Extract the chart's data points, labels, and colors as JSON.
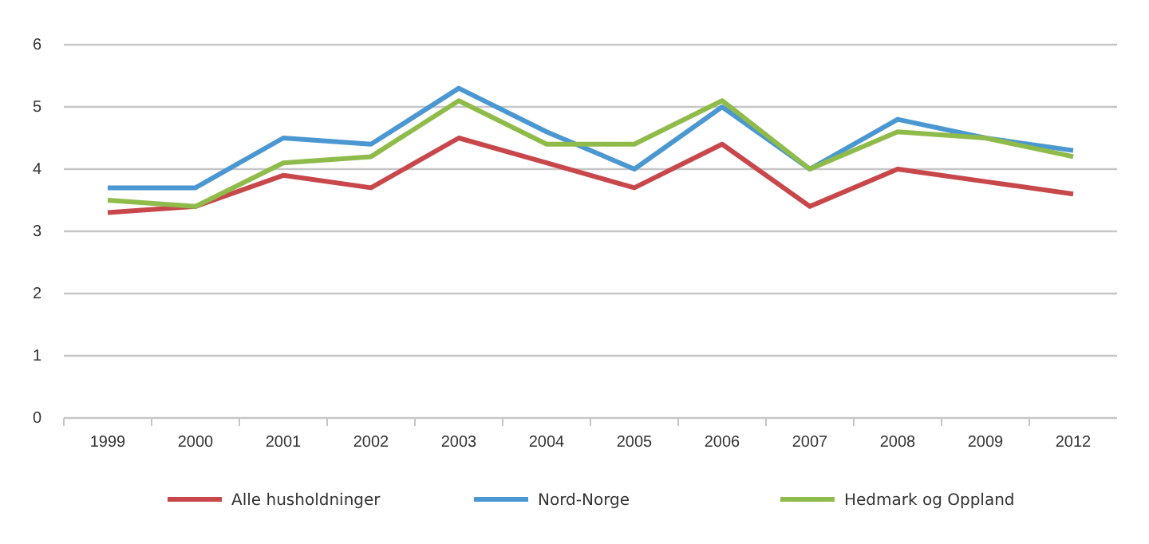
{
  "chart_data": {
    "type": "line",
    "categories": [
      "1999",
      "2000",
      "2001",
      "2002",
      "2003",
      "2004",
      "2005",
      "2006",
      "2007",
      "2008",
      "2009",
      "2012"
    ],
    "series": [
      {
        "name": "Alle husholdninger",
        "color": "#c8474a",
        "values": [
          3.3,
          3.4,
          3.9,
          3.7,
          4.5,
          4.1,
          3.7,
          4.4,
          3.4,
          4.0,
          3.8,
          3.6
        ]
      },
      {
        "name": "Nord-Norge",
        "color": "#4a97d1",
        "values": [
          3.7,
          3.7,
          4.5,
          4.4,
          5.3,
          4.6,
          4.0,
          5.0,
          4.0,
          4.8,
          4.5,
          4.3
        ]
      },
      {
        "name": "Hedmark og Oppland",
        "color": "#8fbb4a",
        "values": [
          3.5,
          3.4,
          4.1,
          4.2,
          5.1,
          4.4,
          4.4,
          5.1,
          4.0,
          4.6,
          4.5,
          4.2
        ]
      }
    ],
    "ylim": [
      0,
      6
    ],
    "yticks": [
      0,
      1,
      2,
      3,
      4,
      5,
      6
    ],
    "grid": "y",
    "legend": "bottom",
    "marker": "none",
    "line_style": "solid"
  }
}
